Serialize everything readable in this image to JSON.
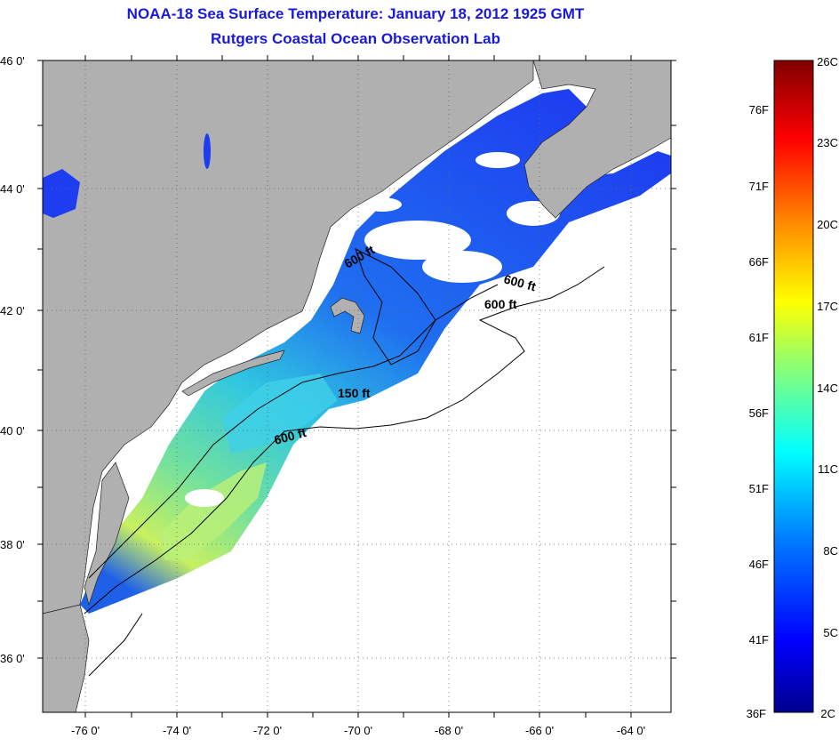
{
  "title": {
    "line1": "NOAA-18 Sea Surface Temperature:  January 18, 2012 1925 GMT",
    "line2": "Rutgers Coastal Ocean Observation Lab"
  },
  "map": {
    "lat_labels": [
      "46 0'",
      "44 0'",
      "42 0'",
      "40 0'",
      "38 0'",
      "36 0'"
    ],
    "lon_labels": [
      "-76 0'",
      "-74 0'",
      "-72 0'",
      "-70 0'",
      "-68 0'",
      "-66 0'",
      "-64 0'"
    ],
    "contours": [
      "600 ft",
      "600 ft",
      "600 ft",
      "150 ft",
      "600 ft"
    ],
    "colors": {
      "land": "#b0b0b0",
      "ocean_no_data": "#ffffff"
    }
  },
  "colorbar": {
    "fahrenheit": [
      "76F",
      "71F",
      "66F",
      "61F",
      "56F",
      "51F",
      "46F",
      "41F",
      "36F"
    ],
    "celsius": [
      "26C",
      "23C",
      "20C",
      "17C",
      "14C",
      "11C",
      "8C",
      "5C",
      "2C"
    ],
    "colors": [
      "#00008f",
      "#0000ff",
      "#0080ff",
      "#00ffff",
      "#80ff80",
      "#ffff00",
      "#ff8000",
      "#ff0000",
      "#800000"
    ]
  }
}
